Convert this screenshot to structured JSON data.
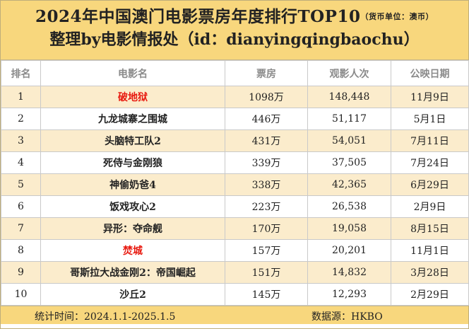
{
  "header": {
    "title": "2024年中国澳门电影票房年度排行TOP10",
    "currency_note": "（货币单位：澳币）",
    "subtitle": "整理by电影情报处（id：dianyingqingbaochu）"
  },
  "table": {
    "columns": [
      "排名",
      "电影名",
      "票房",
      "观影人次",
      "公映日期"
    ],
    "rows": [
      {
        "rank": "1",
        "title": "破地狱",
        "box_office": "1098万",
        "admissions": "148,448",
        "release": "11月9日",
        "highlight": true
      },
      {
        "rank": "2",
        "title": "九龙城寨之围城",
        "box_office": "446万",
        "admissions": "51,117",
        "release": "5月1日",
        "highlight": false
      },
      {
        "rank": "3",
        "title": "头脑特工队2",
        "box_office": "431万",
        "admissions": "54,051",
        "release": "7月11日",
        "highlight": false
      },
      {
        "rank": "4",
        "title": "死侍与金刚狼",
        "box_office": "339万",
        "admissions": "37,505",
        "release": "7月24日",
        "highlight": false
      },
      {
        "rank": "5",
        "title": "神偷奶爸4",
        "box_office": "338万",
        "admissions": "42,365",
        "release": "6月29日",
        "highlight": false
      },
      {
        "rank": "6",
        "title": "饭戏攻心2",
        "box_office": "223万",
        "admissions": "26,538",
        "release": "2月9日",
        "highlight": false
      },
      {
        "rank": "7",
        "title": "异形：夺命舰",
        "box_office": "170万",
        "admissions": "19,058",
        "release": "8月15日",
        "highlight": false
      },
      {
        "rank": "8",
        "title": "焚城",
        "box_office": "157万",
        "admissions": "20,201",
        "release": "11月1日",
        "highlight": true
      },
      {
        "rank": "9",
        "title": "哥斯拉大战金刚2：帝国崛起",
        "box_office": "151万",
        "admissions": "14,832",
        "release": "3月28日",
        "highlight": false
      },
      {
        "rank": "10",
        "title": "沙丘2",
        "box_office": "145万",
        "admissions": "12,293",
        "release": "2月29日",
        "highlight": false
      }
    ]
  },
  "footer": {
    "period": "统计时间：2024.1.1-2025.1.5",
    "source": "数据源：HKBO"
  },
  "colors": {
    "header_bg": "#f8d77d",
    "alt_row_bg": "#fbeccc",
    "highlight_text": "#e8190f"
  }
}
